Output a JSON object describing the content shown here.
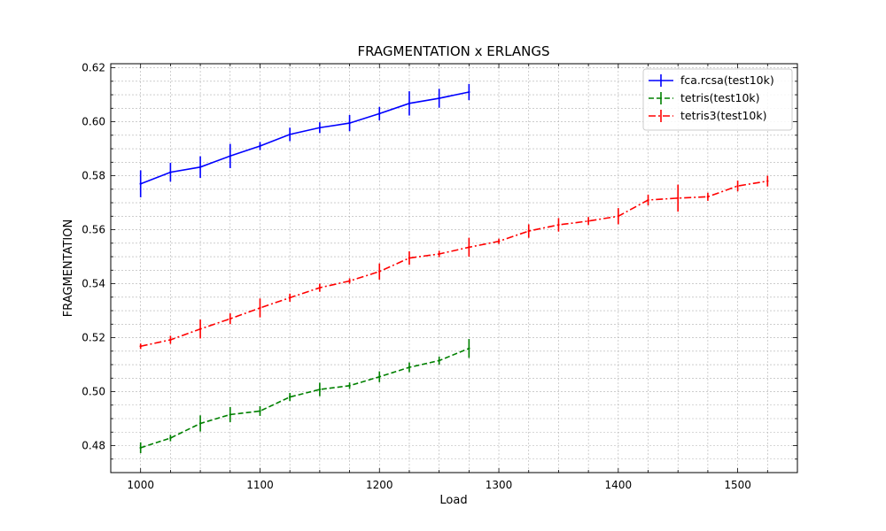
{
  "chart_data": {
    "type": "line",
    "title": "FRAGMENTATION x ERLANGS",
    "xlabel": "Load",
    "ylabel": "FRAGMENTATION",
    "xlim": [
      975,
      1550
    ],
    "ylim": [
      0.47,
      0.6215
    ],
    "xticks": [
      1000,
      1100,
      1200,
      1300,
      1400,
      1500
    ],
    "yticks": [
      0.48,
      0.5,
      0.52,
      0.54,
      0.56,
      0.58,
      0.6,
      0.62
    ],
    "grid": true,
    "legend_position": "top-right",
    "series": [
      {
        "name": "fca.rcsa(test10k)",
        "color": "#0000ff",
        "line_style": "solid",
        "x": [
          1000,
          1025,
          1050,
          1075,
          1100,
          1125,
          1150,
          1175,
          1200,
          1225,
          1250,
          1275
        ],
        "y": [
          0.577,
          0.5813,
          0.5832,
          0.5873,
          0.591,
          0.5953,
          0.5978,
          0.5995,
          0.603,
          0.6068,
          0.6087,
          0.611
        ],
        "err": [
          0.005,
          0.0035,
          0.004,
          0.0045,
          0.0015,
          0.0025,
          0.002,
          0.003,
          0.0025,
          0.0045,
          0.0035,
          0.003
        ]
      },
      {
        "name": "tetris(test10k)",
        "color": "#008000",
        "line_style": "dashed",
        "x": [
          1000,
          1025,
          1050,
          1075,
          1100,
          1125,
          1150,
          1175,
          1200,
          1225,
          1250,
          1275
        ],
        "y": [
          0.4792,
          0.4828,
          0.4882,
          0.4915,
          0.4928,
          0.498,
          0.5008,
          0.5022,
          0.5055,
          0.509,
          0.5115,
          0.516
        ],
        "err": [
          0.002,
          0.0012,
          0.003,
          0.0028,
          0.0018,
          0.0015,
          0.0025,
          0.0012,
          0.002,
          0.0018,
          0.0015,
          0.0035
        ]
      },
      {
        "name": "tetris3(test10k)",
        "color": "#ff0000",
        "line_style": "dashdot",
        "x": [
          1000,
          1025,
          1050,
          1075,
          1100,
          1125,
          1150,
          1175,
          1200,
          1225,
          1250,
          1275,
          1300,
          1325,
          1350,
          1375,
          1400,
          1425,
          1450,
          1475,
          1500,
          1525
        ],
        "y": [
          0.5168,
          0.5192,
          0.5232,
          0.527,
          0.531,
          0.5348,
          0.5385,
          0.541,
          0.5445,
          0.5495,
          0.551,
          0.5535,
          0.5557,
          0.5595,
          0.5618,
          0.5632,
          0.565,
          0.571,
          0.5717,
          0.5722,
          0.5762,
          0.578
        ],
        "err": [
          0.001,
          0.0015,
          0.0035,
          0.002,
          0.0035,
          0.0015,
          0.0015,
          0.001,
          0.003,
          0.0025,
          0.0012,
          0.0035,
          0.001,
          0.0025,
          0.0025,
          0.0015,
          0.003,
          0.002,
          0.005,
          0.0015,
          0.002,
          0.002
        ]
      }
    ]
  }
}
